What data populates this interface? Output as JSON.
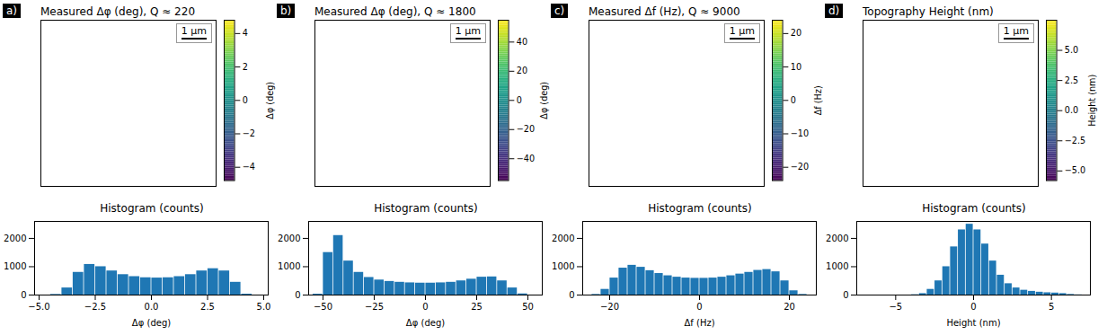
{
  "chart_data": [
    {
      "type": "heatmap",
      "panel": "a)",
      "title": "Measured Δφ (deg), Q ≈ 220",
      "scale_bar": "1 μm",
      "colorbar_label": "Δφ (deg)",
      "colorbar_lim": [
        -4.8,
        4.8
      ],
      "colorbar_ticks": [
        {
          "value": -4,
          "label": "−4"
        },
        {
          "value": -2,
          "label": "−2"
        },
        0,
        2,
        4
      ]
    },
    {
      "type": "histogram",
      "title": "Histogram (counts)",
      "x_label": "Δφ (deg)",
      "color": "#1f77b4",
      "bins": [
        -4.5,
        -4,
        -3.5,
        -3,
        -2.5,
        -2,
        -1.5,
        -1,
        -0.5,
        0,
        0.5,
        1,
        1.5,
        2,
        2.5,
        3,
        3.5,
        4,
        4.5
      ],
      "counts": [
        20,
        250,
        800,
        1080,
        1000,
        850,
        720,
        650,
        610,
        600,
        610,
        650,
        720,
        850,
        930,
        850,
        450,
        30
      ],
      "xlim": [
        -5.2,
        5.2
      ],
      "xticks": [
        {
          "value": -5,
          "label": "−5.0"
        },
        {
          "value": -2.5,
          "label": "−2.5"
        },
        {
          "value": 0,
          "label": "0.0"
        },
        {
          "value": 2.5,
          "label": "2.5"
        },
        {
          "value": 5,
          "label": "5.0"
        }
      ],
      "ylim": [
        0,
        2600
      ],
      "yticks": [
        0,
        1000,
        2000
      ]
    },
    {
      "type": "heatmap",
      "panel": "b)",
      "title": "Measured Δφ (deg), Q ≈ 1800",
      "scale_bar": "1 μm",
      "colorbar_label": "Δφ (deg)",
      "colorbar_lim": [
        -55,
        55
      ],
      "colorbar_ticks": [
        {
          "value": -40,
          "label": "−40"
        },
        {
          "value": -20,
          "label": "−20"
        },
        0,
        20,
        40
      ]
    },
    {
      "type": "histogram",
      "title": "Histogram (counts)",
      "x_label": "Δφ (deg)",
      "color": "#1f77b4",
      "bins": [
        -55,
        -50,
        -45,
        -40,
        -35,
        -30,
        -25,
        -20,
        -15,
        -10,
        -5,
        0,
        5,
        10,
        15,
        20,
        25,
        30,
        35,
        40,
        45,
        50
      ],
      "counts": [
        30,
        1500,
        2100,
        1200,
        800,
        620,
        530,
        480,
        450,
        430,
        420,
        420,
        430,
        450,
        500,
        560,
        630,
        640,
        500,
        250,
        40
      ],
      "xlim": [
        -57,
        57
      ],
      "xticks": [
        {
          "value": -50,
          "label": "−50"
        },
        {
          "value": -25,
          "label": "−25"
        },
        0,
        25,
        50
      ],
      "ylim": [
        0,
        2600
      ],
      "yticks": [
        0,
        1000,
        2000
      ]
    },
    {
      "type": "heatmap",
      "panel": "c)",
      "title": "Measured Δf (Hz), Q ≈ 9000",
      "scale_bar": "1 μm",
      "colorbar_label": "Δf (Hz)",
      "colorbar_lim": [
        -24,
        24
      ],
      "colorbar_ticks": [
        {
          "value": -20,
          "label": "−20"
        },
        {
          "value": -10,
          "label": "−10"
        },
        0,
        10,
        20
      ]
    },
    {
      "type": "histogram",
      "title": "Histogram (counts)",
      "x_label": "Δf (Hz)",
      "color": "#1f77b4",
      "bins": [
        -24,
        -22,
        -20,
        -18,
        -16,
        -14,
        -12,
        -10,
        -8,
        -6,
        -4,
        -2,
        0,
        2,
        4,
        6,
        8,
        10,
        12,
        14,
        16,
        18,
        20,
        22,
        24
      ],
      "counts": [
        20,
        200,
        600,
        950,
        1050,
        980,
        860,
        760,
        680,
        630,
        600,
        590,
        590,
        600,
        630,
        680,
        740,
        800,
        870,
        900,
        820,
        500,
        150,
        20
      ],
      "xlim": [
        -26,
        26
      ],
      "xticks": [
        {
          "value": -20,
          "label": "−20"
        },
        0,
        20
      ],
      "ylim": [
        0,
        2600
      ],
      "yticks": [
        0,
        1000,
        2000
      ]
    },
    {
      "type": "heatmap",
      "panel": "d)",
      "title": "Topography Height (nm)",
      "scale_bar": "1 μm",
      "colorbar_label": "Height (nm)",
      "colorbar_lim": [
        -5.8,
        7.5
      ],
      "colorbar_ticks": [
        {
          "value": -5,
          "label": "−5.0"
        },
        {
          "value": -2.5,
          "label": "−2.5"
        },
        {
          "value": 0,
          "label": "0.0"
        },
        {
          "value": 2.5,
          "label": "2.5"
        },
        {
          "value": 5,
          "label": "5.0"
        }
      ]
    },
    {
      "type": "histogram",
      "title": "Histogram (counts)",
      "x_label": "Height (nm)",
      "color": "#1f77b4",
      "bins": [
        -4,
        -3.5,
        -3,
        -2.5,
        -2,
        -1.5,
        -1,
        -0.5,
        0,
        0.5,
        1,
        1.5,
        2,
        2.5,
        3,
        3.5,
        4,
        4.5,
        5,
        5.5,
        6,
        6.5,
        7
      ],
      "counts": [
        10,
        50,
        200,
        500,
        1000,
        1700,
        2300,
        2500,
        2300,
        1800,
        1200,
        700,
        400,
        250,
        170,
        130,
        100,
        80,
        70,
        50,
        20,
        5
      ],
      "xlim": [
        -7.5,
        7.5
      ],
      "xticks": [
        {
          "value": -5,
          "label": "−5"
        },
        0,
        5
      ],
      "ylim": [
        0,
        2600
      ],
      "yticks": [
        0,
        1000,
        2000
      ]
    }
  ]
}
